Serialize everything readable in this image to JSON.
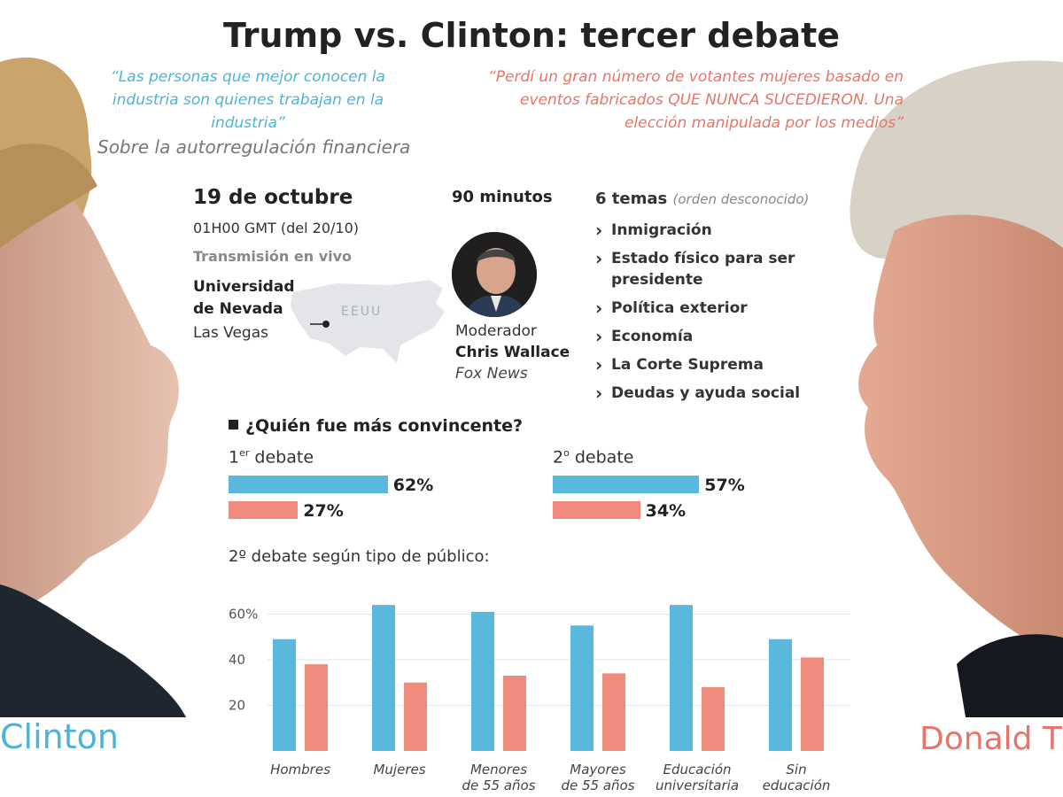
{
  "title": "Trump vs. Clinton: tercer debate",
  "clinton": {
    "quote": "“Las personas que mejor conocen la industria son quienes trabajan en la industria”",
    "quote_context": "Sobre la autorregulación financiera",
    "name": "Clinton"
  },
  "trump": {
    "quote": "“Perdí un gran número de votantes mujeres basado en eventos fabricados QUE NUNCA SUCEDIERON. Una elección manipulada por los medios”",
    "name": "Donald T"
  },
  "event": {
    "date": "19 de octubre",
    "time": "01H00 GMT (del 20/10)",
    "broadcast": "Transmisión en vivo",
    "venue_line1": "Universidad",
    "venue_line2": "de Nevada",
    "city": "Las Vegas",
    "map_label": "EEUU"
  },
  "moderator": {
    "duration": "90 minutos",
    "label": "Moderador",
    "name": "Chris Wallace",
    "network": "Fox News"
  },
  "topics": {
    "heading": "6 temas",
    "note": "(orden desconocido)",
    "items": [
      "Inmigración",
      "Estado físico para ser presidente",
      "Política exterior",
      "Economía",
      "La Corte Suprema",
      "Deudas y ayuda social"
    ]
  },
  "colors": {
    "clinton": "#5ab8dc",
    "trump": "#ef8a7c"
  },
  "chart_data": [
    {
      "type": "bar",
      "title": "¿Quién fue más convincente?",
      "charts": [
        {
          "label": "1er debate",
          "series": [
            {
              "values": [
                62
              ]
            },
            {
              "values": [
                27
              ]
            }
          ],
          "labels": [
            "62%",
            "27%"
          ]
        },
        {
          "label": "2o debate",
          "series": [
            {
              "values": [
                57
              ]
            },
            {
              "values": [
                34
              ]
            }
          ],
          "labels": [
            "57%",
            "34%"
          ]
        }
      ]
    },
    {
      "type": "bar",
      "title": "2º debate según tipo de público:",
      "categories": [
        "Hombres",
        "Mujeres",
        "Menores de 55 años",
        "Mayores de 55 años",
        "Educación universitaria",
        "Sin educación"
      ],
      "series": [
        {
          "values": [
            49,
            64,
            61,
            55,
            64,
            49
          ]
        },
        {
          "values": [
            38,
            30,
            33,
            34,
            28,
            41
          ]
        }
      ],
      "y_ticks": [
        "60%",
        "40",
        "20"
      ],
      "ylim": [
        0,
        66
      ]
    }
  ]
}
